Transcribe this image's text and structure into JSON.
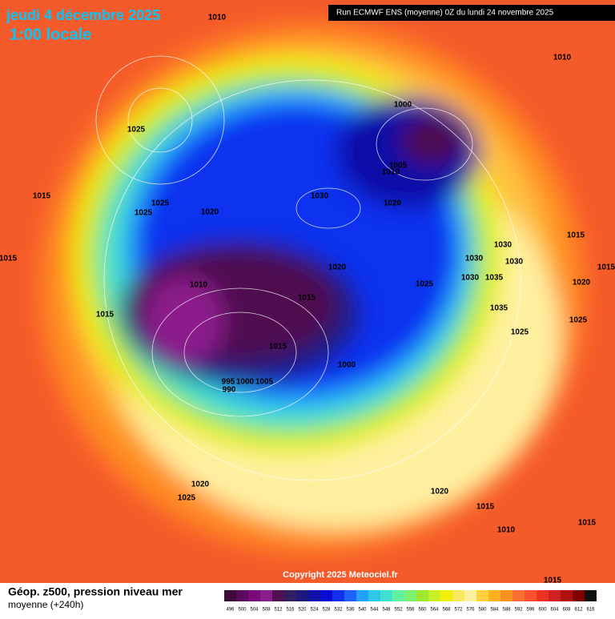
{
  "header": {
    "date": "jeudi 4 décembre 2025",
    "time": "1:00 locale",
    "run": "Run ECMWF ENS (moyenne) 0Z du lundi 24 novembre 2025"
  },
  "isobar_labels": [
    "1010",
    "1010",
    "1025",
    "1000",
    "1005",
    "1010",
    "1030",
    "1020",
    "1015",
    "1025",
    "1025",
    "1020",
    "1015",
    "1030",
    "1030",
    "1030",
    "1015",
    "1020",
    "1010",
    "1030",
    "1035",
    "1020",
    "1025",
    "1015",
    "1015",
    "1035",
    "1025",
    "1025",
    "1015",
    "1000",
    "995",
    "1000",
    "1005",
    "990",
    "1020",
    "1025",
    "1020",
    "1015",
    "1010",
    "1015",
    "1015",
    "1015"
  ],
  "copyright": "Copyright 2025 Meteociel.fr",
  "legend": {
    "title": "Géop. z500, pression niveau mer",
    "subtitle": "moyenne  (+240h)",
    "values": [
      496,
      500,
      504,
      508,
      512,
      516,
      520,
      524,
      528,
      532,
      536,
      540,
      544,
      548,
      552,
      556,
      560,
      564,
      568,
      572,
      576,
      580,
      584,
      588,
      592,
      596,
      600,
      604,
      608,
      612,
      616
    ],
    "colors": [
      "#3a0a3a",
      "#5a0a5a",
      "#7a0a7a",
      "#8c1c8c",
      "#501050",
      "#302060",
      "#1a1a80",
      "#1010a8",
      "#0a0ad0",
      "#1030f0",
      "#2060ff",
      "#20a0ff",
      "#30c8e8",
      "#40e0d0",
      "#60f0a0",
      "#80f070",
      "#a0e830",
      "#c8f020",
      "#f0f000",
      "#f8e860",
      "#fff0a0",
      "#ffd040",
      "#ffb020",
      "#ff9020",
      "#ff7030",
      "#ff5030",
      "#f03020",
      "#d02020",
      "#b01010",
      "#800000",
      "#101010"
    ]
  }
}
